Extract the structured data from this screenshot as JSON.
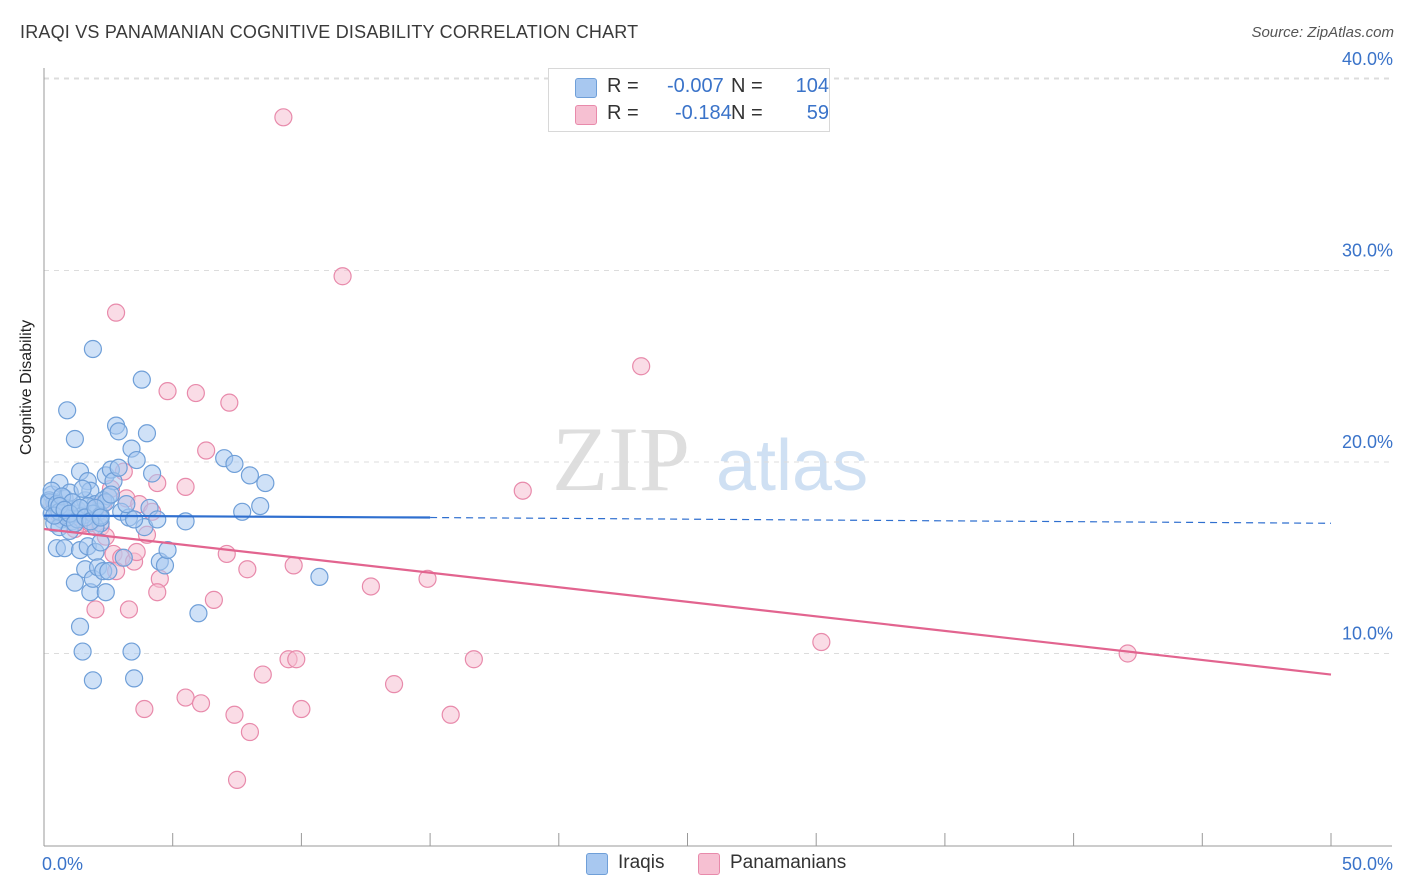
{
  "title": "IRAQI VS PANAMANIAN COGNITIVE DISABILITY CORRELATION CHART",
  "source": "Source: ZipAtlas.com",
  "watermark": {
    "zip": "ZIP",
    "atlas": "atlas"
  },
  "legend": {
    "rows": [
      {
        "r_label": "R =",
        "r_value": "-0.007",
        "n_label": "N =",
        "n_value": "104"
      },
      {
        "r_label": "R =",
        "r_value": "-0.184",
        "n_label": "N =",
        "n_value": "59"
      }
    ]
  },
  "bottom_legend": {
    "iraqis": "Iraqis",
    "panamanians": "Panamanians"
  },
  "colors": {
    "blue_fill": "#a8c8f0",
    "blue_stroke": "#6f9fd8",
    "blue_line": "#2f6fcf",
    "pink_fill": "#f6c0d2",
    "pink_stroke": "#e88aab",
    "pink_line": "#e2648f",
    "axis_text": "#3a73c9",
    "grid": "#dcdcdc"
  },
  "chart_data": {
    "type": "scatter",
    "title": "IRAQI VS PANAMANIAN COGNITIVE DISABILITY CORRELATION CHART",
    "xlabel": "",
    "ylabel": "Cognitive Disability",
    "xlim": [
      0,
      50
    ],
    "ylim": [
      0,
      42
    ],
    "x_tick_labels": [
      "0.0%",
      "50.0%"
    ],
    "y_ticks": [
      10,
      20,
      30,
      40
    ],
    "y_tick_labels": [
      "10.0%",
      "20.0%",
      "30.0%",
      "40.0%"
    ],
    "series": [
      {
        "name": "Iraqis",
        "r": -0.007,
        "n": 104,
        "trend": {
          "x": [
            0,
            15
          ],
          "y": [
            17.2,
            17.1
          ],
          "dashed_to": [
            50,
            16.8
          ]
        },
        "points": [
          [
            0.3,
            18.3
          ],
          [
            0.4,
            17.9
          ],
          [
            0.2,
            18.0
          ],
          [
            0.5,
            17.5
          ],
          [
            0.6,
            18.9
          ],
          [
            0.3,
            17.3
          ],
          [
            0.8,
            18.1
          ],
          [
            0.7,
            17.0
          ],
          [
            0.4,
            16.8
          ],
          [
            0.9,
            17.6
          ],
          [
            1.0,
            18.4
          ],
          [
            1.2,
            17.3
          ],
          [
            1.1,
            16.9
          ],
          [
            0.6,
            16.6
          ],
          [
            1.3,
            17.5
          ],
          [
            1.5,
            17.2
          ],
          [
            1.4,
            19.5
          ],
          [
            1.7,
            19.0
          ],
          [
            1.6,
            18.0
          ],
          [
            1.8,
            18.5
          ],
          [
            2.0,
            17.8
          ],
          [
            2.1,
            17.4
          ],
          [
            2.2,
            16.8
          ],
          [
            2.4,
            19.3
          ],
          [
            2.5,
            18.2
          ],
          [
            2.6,
            19.6
          ],
          [
            2.7,
            19.0
          ],
          [
            2.9,
            19.7
          ],
          [
            2.3,
            18.0
          ],
          [
            3.0,
            17.4
          ],
          [
            0.5,
            15.5
          ],
          [
            0.8,
            15.5
          ],
          [
            1.0,
            16.4
          ],
          [
            1.2,
            13.7
          ],
          [
            1.4,
            15.4
          ],
          [
            1.6,
            14.4
          ],
          [
            1.7,
            15.6
          ],
          [
            1.8,
            13.2
          ],
          [
            1.9,
            13.9
          ],
          [
            2.0,
            15.3
          ],
          [
            2.1,
            14.5
          ],
          [
            2.2,
            15.8
          ],
          [
            2.3,
            14.3
          ],
          [
            2.4,
            13.2
          ],
          [
            2.5,
            14.3
          ],
          [
            0.9,
            22.7
          ],
          [
            1.2,
            21.2
          ],
          [
            1.9,
            25.9
          ],
          [
            2.8,
            21.9
          ],
          [
            2.9,
            21.6
          ],
          [
            3.1,
            15.0
          ],
          [
            3.3,
            17.1
          ],
          [
            3.4,
            20.7
          ],
          [
            3.6,
            20.1
          ],
          [
            3.8,
            24.3
          ],
          [
            3.9,
            16.6
          ],
          [
            4.0,
            21.5
          ],
          [
            4.2,
            19.4
          ],
          [
            4.1,
            17.6
          ],
          [
            4.4,
            17.0
          ],
          [
            4.5,
            14.8
          ],
          [
            4.7,
            14.6
          ],
          [
            4.8,
            15.4
          ],
          [
            5.5,
            16.9
          ],
          [
            6.0,
            12.1
          ],
          [
            7.0,
            20.2
          ],
          [
            7.4,
            19.9
          ],
          [
            7.7,
            17.4
          ],
          [
            8.0,
            19.3
          ],
          [
            8.4,
            17.7
          ],
          [
            8.6,
            18.9
          ],
          [
            10.7,
            14.0
          ],
          [
            1.4,
            11.4
          ],
          [
            1.5,
            10.1
          ],
          [
            1.9,
            8.6
          ],
          [
            3.4,
            10.1
          ],
          [
            3.5,
            8.7
          ],
          [
            0.2,
            17.9
          ],
          [
            0.3,
            18.5
          ],
          [
            0.5,
            17.8
          ],
          [
            0.6,
            17.4
          ],
          [
            0.7,
            18.2
          ],
          [
            0.9,
            17.1
          ],
          [
            1.1,
            17.9
          ],
          [
            1.3,
            17.0
          ],
          [
            1.5,
            18.6
          ],
          [
            1.7,
            17.7
          ],
          [
            1.9,
            17.3
          ],
          [
            2.0,
            16.6
          ],
          [
            2.2,
            17.2
          ],
          [
            2.4,
            17.9
          ],
          [
            2.6,
            18.3
          ],
          [
            3.2,
            17.8
          ],
          [
            3.5,
            17.0
          ],
          [
            0.4,
            17.2
          ],
          [
            0.6,
            17.7
          ],
          [
            0.8,
            17.5
          ],
          [
            1.0,
            17.3
          ],
          [
            1.2,
            16.8
          ],
          [
            1.4,
            17.6
          ],
          [
            1.6,
            17.1
          ],
          [
            1.8,
            16.9
          ],
          [
            2.0,
            17.6
          ],
          [
            2.2,
            17.1
          ]
        ]
      },
      {
        "name": "Panamanians",
        "r": -0.184,
        "n": 59,
        "trend": {
          "x": [
            0,
            50
          ],
          "y": [
            16.5,
            8.9
          ]
        },
        "points": [
          [
            9.3,
            38.0
          ],
          [
            11.6,
            29.7
          ],
          [
            2.8,
            27.8
          ],
          [
            23.2,
            25.0
          ],
          [
            4.8,
            23.7
          ],
          [
            5.9,
            23.6
          ],
          [
            7.2,
            23.1
          ],
          [
            6.3,
            20.6
          ],
          [
            18.6,
            18.5
          ],
          [
            3.2,
            18.1
          ],
          [
            3.7,
            17.8
          ],
          [
            4.4,
            18.9
          ],
          [
            5.5,
            18.7
          ],
          [
            3.1,
            19.5
          ],
          [
            2.6,
            18.6
          ],
          [
            4.2,
            17.4
          ],
          [
            0.8,
            17.2
          ],
          [
            1.0,
            17.3
          ],
          [
            1.4,
            17.0
          ],
          [
            1.6,
            16.8
          ],
          [
            2.0,
            17.5
          ],
          [
            0.4,
            17.8
          ],
          [
            0.6,
            17.2
          ],
          [
            1.2,
            16.5
          ],
          [
            1.8,
            16.8
          ],
          [
            2.2,
            16.6
          ],
          [
            2.4,
            16.1
          ],
          [
            2.7,
            15.2
          ],
          [
            3.0,
            15.0
          ],
          [
            3.5,
            14.8
          ],
          [
            4.5,
            13.9
          ],
          [
            4.4,
            13.2
          ],
          [
            7.1,
            15.2
          ],
          [
            7.9,
            14.4
          ],
          [
            9.7,
            14.6
          ],
          [
            12.7,
            13.5
          ],
          [
            14.9,
            13.9
          ],
          [
            3.3,
            12.3
          ],
          [
            2.0,
            12.3
          ],
          [
            6.6,
            12.8
          ],
          [
            30.2,
            10.6
          ],
          [
            42.1,
            10.0
          ],
          [
            9.5,
            9.7
          ],
          [
            9.8,
            9.7
          ],
          [
            16.7,
            9.7
          ],
          [
            8.5,
            8.9
          ],
          [
            13.6,
            8.4
          ],
          [
            5.5,
            7.7
          ],
          [
            6.1,
            7.4
          ],
          [
            3.9,
            7.1
          ],
          [
            10.0,
            7.1
          ],
          [
            7.4,
            6.8
          ],
          [
            15.8,
            6.8
          ],
          [
            8.0,
            5.9
          ],
          [
            7.5,
            3.4
          ],
          [
            2.8,
            14.3
          ],
          [
            3.6,
            15.3
          ],
          [
            2.3,
            17.8
          ],
          [
            4.0,
            16.2
          ]
        ]
      }
    ]
  }
}
